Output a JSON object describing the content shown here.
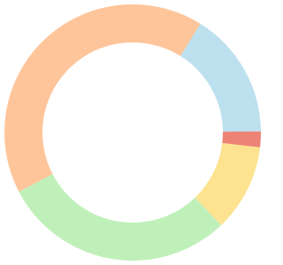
{
  "chart_data": {
    "type": "donut",
    "values": [
      16,
      2,
      11,
      29.5,
      41.5
    ],
    "colors": [
      "#bde0ee",
      "#ec8375",
      "#fde28f",
      "#bff0b9",
      "#fec59a"
    ]
  }
}
